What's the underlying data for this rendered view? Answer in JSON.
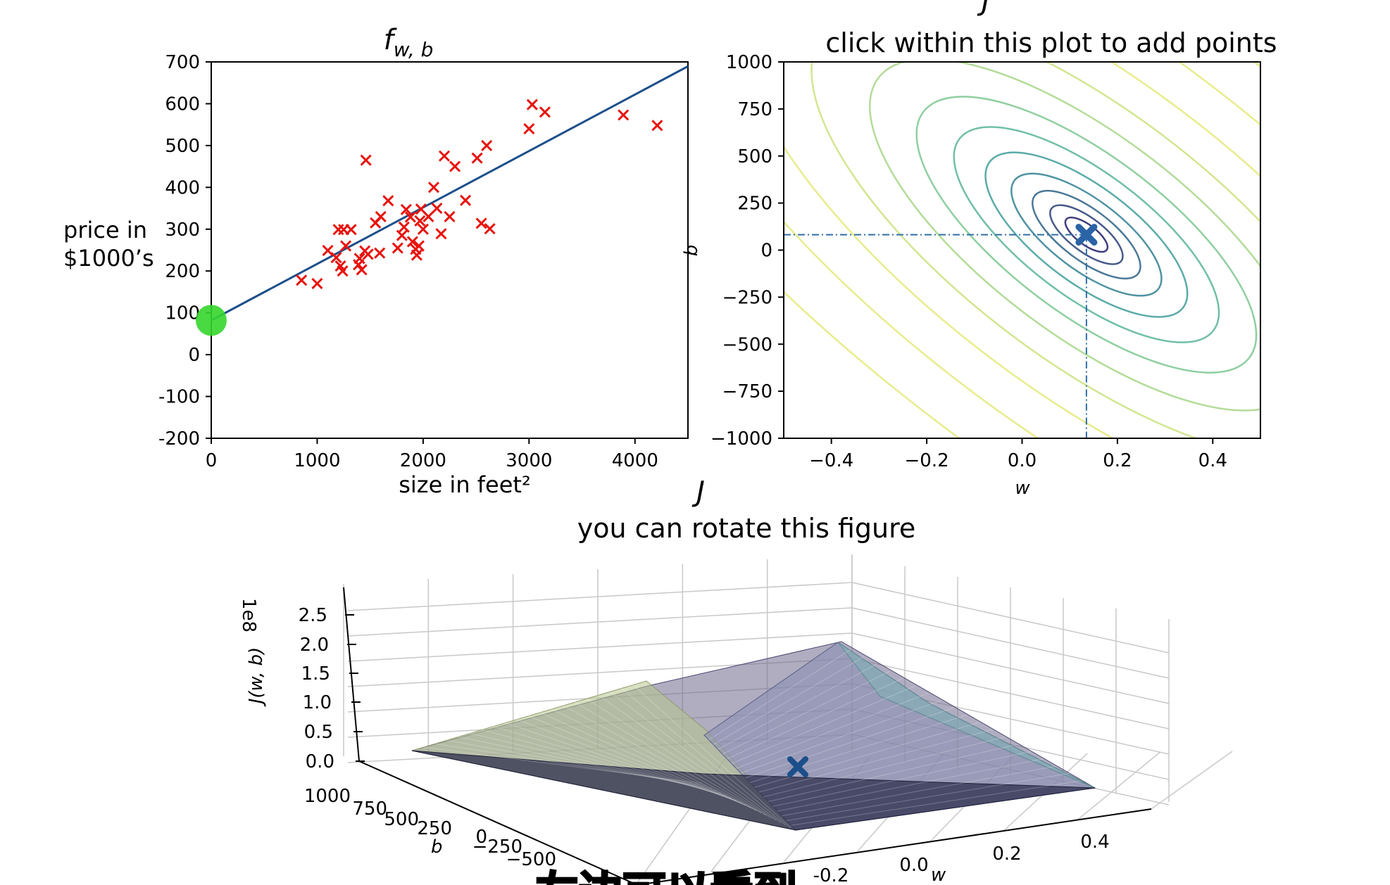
{
  "chart_data": [
    {
      "type": "scatter",
      "title": "f_{w,b}",
      "title_main": "f",
      "title_sub": "w, b",
      "xlabel": "size in feet²",
      "ylabel_lines": [
        "price in",
        "$1000’s"
      ],
      "xlim": [
        0,
        4500
      ],
      "ylim": [
        -200,
        700
      ],
      "xticks": [
        0,
        1000,
        2000,
        3000,
        4000
      ],
      "yticks": [
        700,
        600,
        500,
        400,
        300,
        200,
        100,
        0,
        -100,
        -200
      ],
      "series": [
        {
          "marker": "x",
          "color": "#e8130c",
          "points": [
            [
              852,
              178
            ],
            [
              1000,
              170
            ],
            [
              1100,
              249
            ],
            [
              1200,
              299
            ],
            [
              1250,
              299
            ],
            [
              1180,
              232
            ],
            [
              1220,
              212
            ],
            [
              1240,
              200
            ],
            [
              1270,
              260
            ],
            [
              1320,
              299
            ],
            [
              1390,
              215
            ],
            [
              1400,
              230
            ],
            [
              1420,
              203
            ],
            [
              1450,
              248
            ],
            [
              1460,
              465
            ],
            [
              1480,
              240
            ],
            [
              1550,
              315
            ],
            [
              1600,
              330
            ],
            [
              1590,
              243
            ],
            [
              1670,
              368
            ],
            [
              1760,
              255
            ],
            [
              1800,
              285
            ],
            [
              1820,
              305
            ],
            [
              1840,
              347
            ],
            [
              1880,
              329
            ],
            [
              1900,
              270
            ],
            [
              1930,
              252
            ],
            [
              1940,
              238
            ],
            [
              1960,
              260
            ],
            [
              1970,
              320
            ],
            [
              1980,
              348
            ],
            [
              2000,
              300
            ],
            [
              2050,
              330
            ],
            [
              2100,
              400
            ],
            [
              2130,
              350
            ],
            [
              2170,
              289
            ],
            [
              2200,
              475
            ],
            [
              2250,
              330
            ],
            [
              2300,
              450
            ],
            [
              2400,
              369
            ],
            [
              2510,
              470
            ],
            [
              2550,
              314
            ],
            [
              2600,
              500
            ],
            [
              2630,
              301
            ],
            [
              3000,
              540
            ],
            [
              3030,
              598
            ],
            [
              3150,
              580
            ],
            [
              3890,
              573
            ],
            [
              4210,
              548
            ]
          ]
        }
      ],
      "line": {
        "color": "#1c4f8a",
        "w": 0.135,
        "b": 82
      },
      "highlight_point": {
        "x": 0,
        "y": 82,
        "color": "#35d62e"
      }
    },
    {
      "type": "contour",
      "title_top": "J",
      "title": "click within this plot to add points",
      "xlabel": "w",
      "ylabel": "b",
      "xlim": [
        -0.5,
        0.5
      ],
      "ylim": [
        -1000,
        1000
      ],
      "xticks": [
        -0.4,
        -0.2,
        0.0,
        0.2,
        0.4
      ],
      "xtick_labels": [
        "−0.4",
        "−0.2",
        "0.0",
        "0.2",
        "0.4"
      ],
      "yticks": [
        1000,
        750,
        500,
        250,
        0,
        -250,
        -500,
        -750,
        -1000
      ],
      "ytick_labels": [
        "1000",
        "750",
        "500",
        "250",
        "0",
        "−250",
        "−500",
        "−750",
        "−1000"
      ],
      "minimum": {
        "w": 0.135,
        "b": 82
      },
      "colors": [
        "#3f3d7a",
        "#465a8a",
        "#4a7898",
        "#4f93a2",
        "#5aaba8",
        "#70bfa6",
        "#8fcfa0",
        "#b3dc98",
        "#d2e690",
        "#e8ec8c"
      ]
    },
    {
      "type": "surface",
      "title_top": "J",
      "title": "you can rotate this figure",
      "zlabel": "J(w, b)",
      "z_multiplier": "1e8",
      "zticks": [
        "0.0",
        "0.5",
        "1.0",
        "1.5",
        "2.0",
        "2.5"
      ],
      "xlabel": "w",
      "xticks": [
        "-0.2",
        "0.0",
        "0.2",
        "0.4"
      ],
      "ylabel": "b",
      "yticks": [
        "1000",
        "750",
        "500",
        "250",
        "0",
        "−250",
        "−500"
      ],
      "marker": {
        "w": 0.135,
        "b": 82,
        "color": "#1c4f8a"
      }
    }
  ],
  "overlay_caption": "左边可以看到"
}
